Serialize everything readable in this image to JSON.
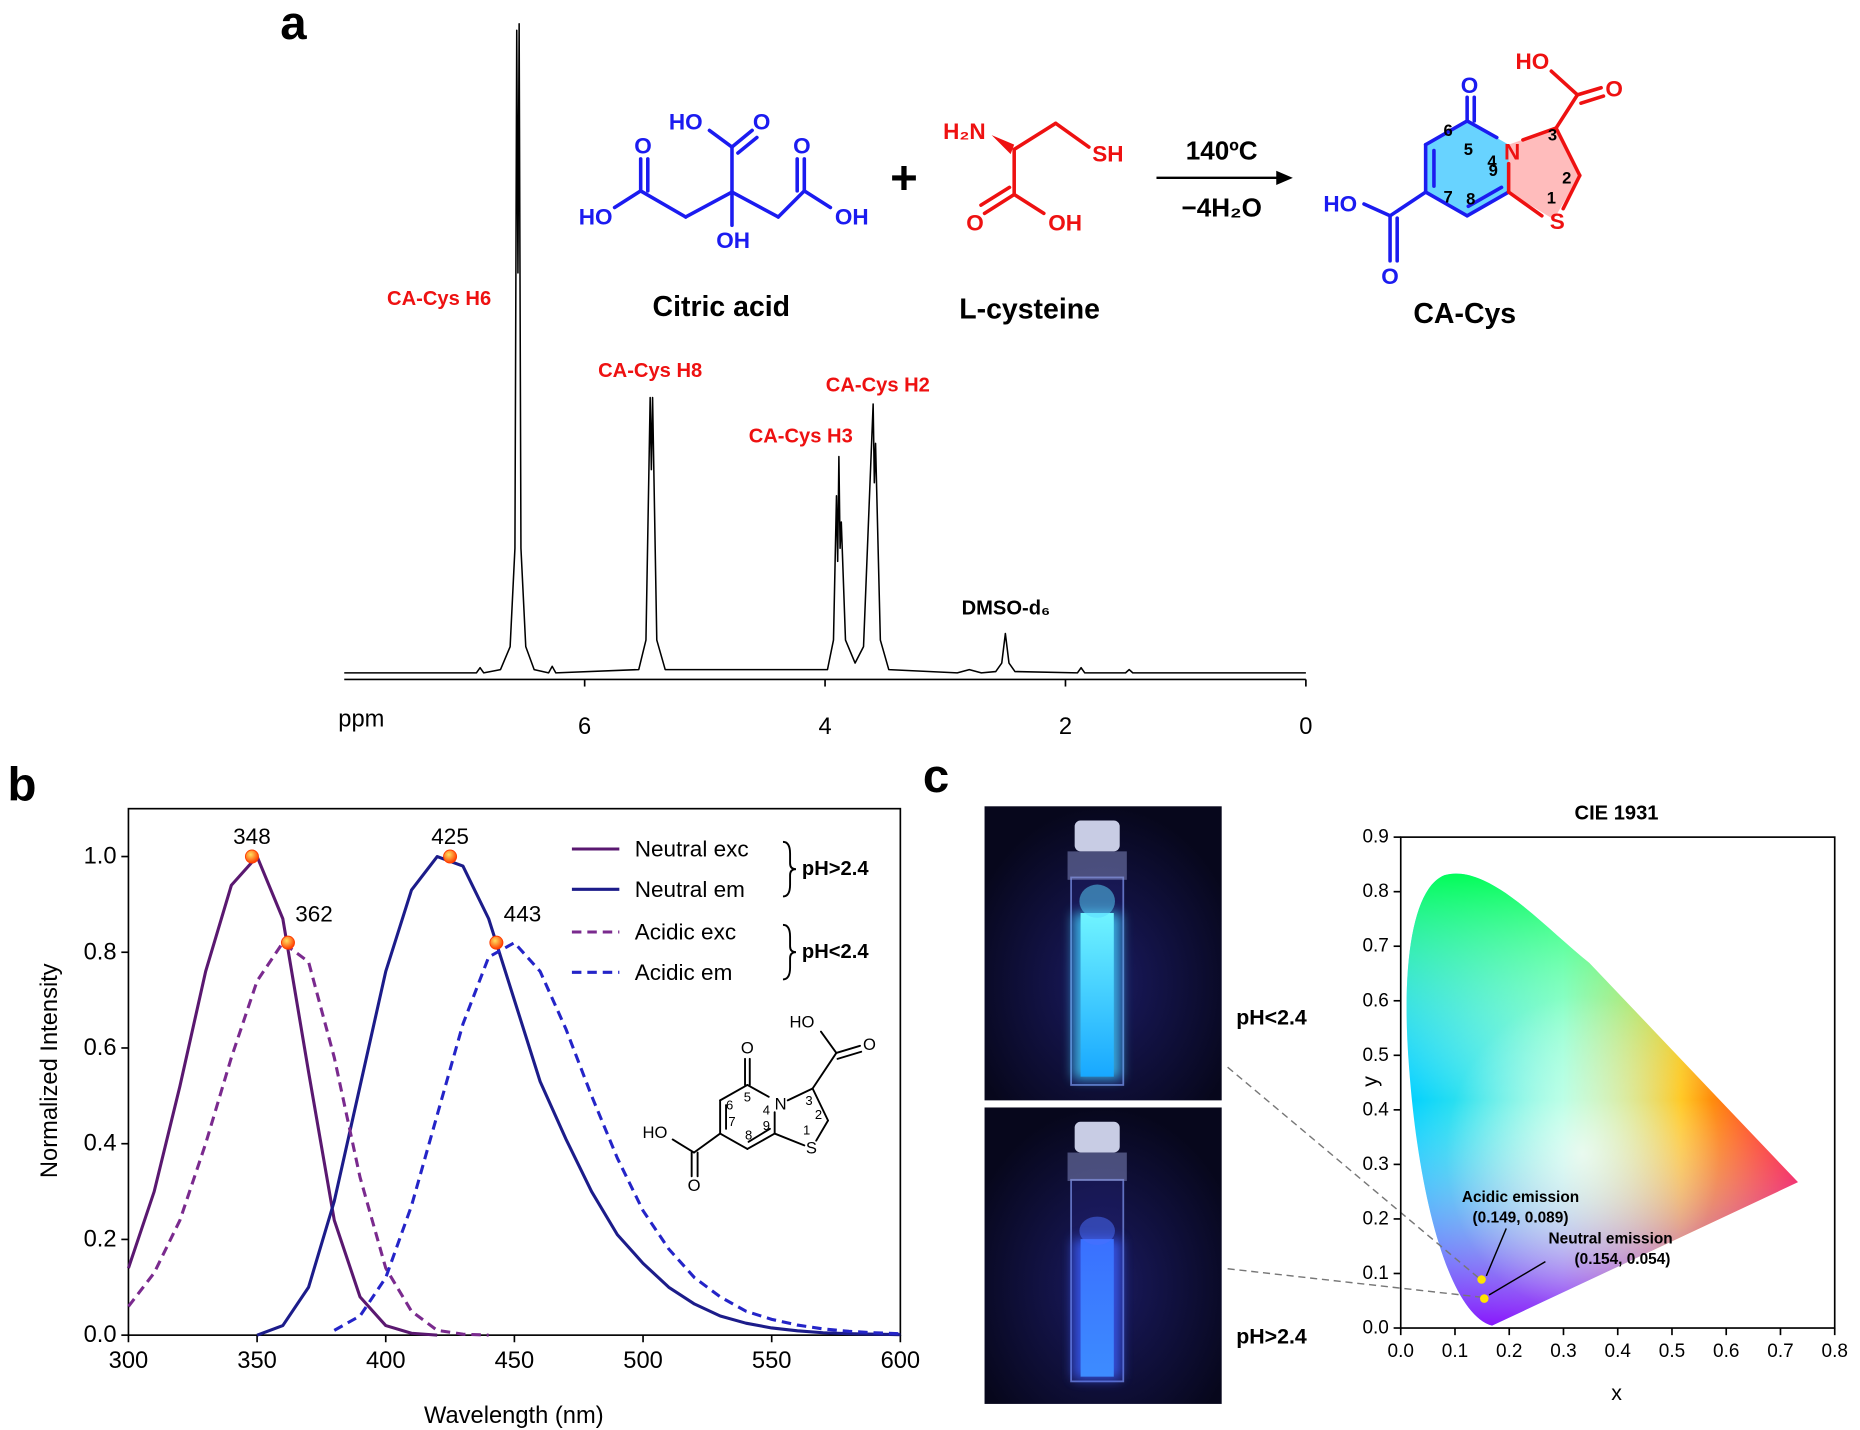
{
  "panel_labels": [
    "a",
    "b",
    "c"
  ],
  "scheme": {
    "citric_acid": {
      "name": "Citric acid",
      "atoms": [
        "HO",
        "O",
        "O",
        "O",
        "HO",
        "OH",
        "OH"
      ]
    },
    "plus": "+",
    "l_cysteine": {
      "name": "L-cysteine",
      "atoms": [
        "H₂N",
        "SH",
        "O",
        "OH"
      ]
    },
    "conditions": [
      "140ºC",
      "−4H₂O"
    ],
    "ca_cys": {
      "name": "CA-Cys",
      "atoms": [
        "HO",
        "O",
        "O",
        "N",
        "S",
        "HO",
        "O"
      ],
      "numbers": [
        "6",
        "5",
        "4",
        "3",
        "7",
        "8",
        "9",
        "2",
        "1"
      ]
    }
  },
  "photo_labels": [
    "pH<2.4",
    "pH>2.4"
  ],
  "chart_data": [
    {
      "type": "line",
      "xlabel": "ppm",
      "frame": false,
      "color": "#000000",
      "xlim": [
        8,
        0
      ],
      "xticks": [
        6,
        4,
        2,
        0
      ],
      "annotations": [
        "CA-Cys H6",
        "CA-Cys H8",
        "CA-Cys H3",
        "CA-Cys H2",
        "DMSO-d₆"
      ],
      "x": [
        8.0,
        6.9,
        6.87,
        6.84,
        6.7,
        6.62,
        6.58,
        6.565,
        6.555,
        6.545,
        6.53,
        6.49,
        6.42,
        6.3,
        6.27,
        6.24,
        5.55,
        5.49,
        5.455,
        5.445,
        5.435,
        5.4,
        5.33,
        3.98,
        3.93,
        3.905,
        3.895,
        3.885,
        3.875,
        3.865,
        3.83,
        3.75,
        3.68,
        3.6,
        3.59,
        3.58,
        3.54,
        3.47,
        2.9,
        2.8,
        2.7,
        2.58,
        2.53,
        2.5,
        2.47,
        2.42,
        1.9,
        1.87,
        1.84,
        1.5,
        1.47,
        1.44,
        0.0
      ],
      "values": [
        1,
        1,
        1.8,
        1,
        1.5,
        5,
        20,
        99,
        62,
        100,
        20,
        5,
        1.5,
        1,
        2,
        1,
        1.5,
        6,
        43,
        32,
        43,
        6,
        1.5,
        1.5,
        6,
        28,
        18,
        34,
        20,
        24,
        6,
        2.5,
        5,
        42,
        30,
        36,
        6,
        1.5,
        1,
        1.5,
        1,
        1.2,
        2.5,
        7,
        2.5,
        1.2,
        1,
        1.8,
        1,
        1,
        1.5,
        1,
        1
      ]
    },
    {
      "type": "line",
      "xlabel": "Wavelength (nm)",
      "ylabel": "Normalized Intensity",
      "frame": true,
      "xlim": [
        300,
        600
      ],
      "ylim": [
        0,
        1.1
      ],
      "xticks": [
        300,
        350,
        400,
        450,
        500,
        550,
        600
      ],
      "yticks": [
        {
          "value": 0,
          "label": "0.0"
        },
        0.2,
        0.4,
        0.6,
        0.8,
        {
          "value": 1,
          "label": "1.0"
        }
      ],
      "x": [
        300,
        310,
        320,
        330,
        340,
        350,
        360,
        370,
        380,
        390,
        400,
        410,
        420,
        430,
        440,
        450,
        460,
        470,
        480,
        490,
        500,
        510,
        520,
        530,
        540,
        550,
        560,
        570,
        580,
        590,
        600
      ],
      "series": [
        {
          "name": "Neutral exc",
          "color": "#5a1870",
          "line_style": "solid",
          "values": [
            0.14,
            0.3,
            0.52,
            0.76,
            0.94,
            1.0,
            0.87,
            0.55,
            0.24,
            0.08,
            0.02,
            0.004,
            0,
            null,
            null,
            null,
            null,
            null,
            null,
            null,
            null,
            null,
            null,
            null,
            null,
            null,
            null,
            null,
            null,
            null,
            null
          ]
        },
        {
          "name": "Neutral em",
          "color": "#1c1c8a",
          "line_style": "solid",
          "values": [
            null,
            null,
            null,
            null,
            null,
            0,
            0.02,
            0.1,
            0.28,
            0.52,
            0.76,
            0.93,
            1.0,
            0.98,
            0.87,
            0.7,
            0.53,
            0.41,
            0.3,
            0.21,
            0.15,
            0.1,
            0.065,
            0.04,
            0.025,
            0.015,
            0.009,
            0.005,
            0.003,
            0.002,
            0.001
          ]
        },
        {
          "name": "Acidic exc",
          "color": "#7a2a8e",
          "line_style": "dashed",
          "values": [
            0.06,
            0.13,
            0.24,
            0.4,
            0.58,
            0.74,
            0.82,
            0.78,
            0.58,
            0.33,
            0.14,
            0.05,
            0.01,
            0.002,
            0,
            null,
            null,
            null,
            null,
            null,
            null,
            null,
            null,
            null,
            null,
            null,
            null,
            null,
            null,
            null,
            null
          ]
        },
        {
          "name": "Acidic em",
          "color": "#2424c8",
          "line_style": "dashed",
          "values": [
            null,
            null,
            null,
            null,
            null,
            null,
            null,
            null,
            0.01,
            0.04,
            0.12,
            0.27,
            0.46,
            0.65,
            0.79,
            0.82,
            0.76,
            0.64,
            0.5,
            0.37,
            0.26,
            0.18,
            0.12,
            0.08,
            0.05,
            0.033,
            0.021,
            0.013,
            0.008,
            0.005,
            0.003
          ]
        }
      ],
      "peaks": {
        "color": "#ff3c00",
        "x": [
          348,
          362,
          425,
          443
        ],
        "values": [
          1.0,
          0.82,
          1.0,
          0.82
        ]
      },
      "legend_groups": [
        "pH>2.4",
        "pH<2.4"
      ],
      "inset_labels": {
        "atoms": [
          "HO",
          "O",
          "O",
          "N",
          "S",
          "HO",
          "O"
        ],
        "numbers": [
          "6",
          "5",
          "4",
          "3",
          "7",
          "8",
          "9",
          "2",
          "1"
        ]
      }
    },
    {
      "type": "scatter",
      "title": "CIE 1931",
      "xlabel": "x",
      "ylabel": "y",
      "frame": true,
      "xlim": [
        0,
        0.8
      ],
      "ylim": [
        0,
        0.9
      ],
      "xticks": [
        {
          "value": 0,
          "label": "0.0"
        },
        0.1,
        0.2,
        0.3,
        0.4,
        0.5,
        0.6,
        0.7,
        0.8
      ],
      "yticks": [
        {
          "value": 0,
          "label": "0.0"
        },
        0.1,
        0.2,
        0.3,
        0.4,
        0.5,
        0.6,
        0.7,
        0.8,
        0.9
      ],
      "series": [
        {
          "name": "Acidic emission",
          "color": "#ffe400",
          "x": [
            0.149
          ],
          "values": [
            0.089
          ],
          "value_labels": [
            "(0.149, 0.089)"
          ]
        },
        {
          "name": "Neutral emission",
          "color": "#ffe400",
          "x": [
            0.154
          ],
          "values": [
            0.054
          ],
          "value_labels": [
            "(0.154, 0.054)"
          ]
        }
      ]
    }
  ]
}
